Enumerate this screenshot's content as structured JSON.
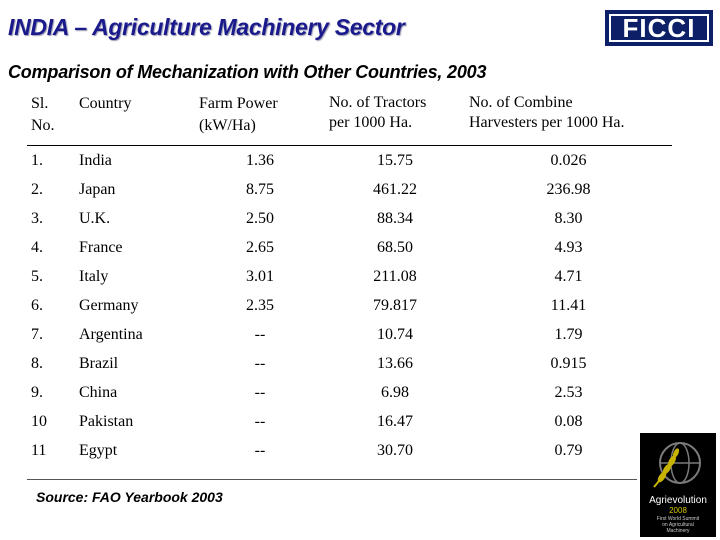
{
  "header": {
    "title": "INDIA – Agriculture Machinery Sector",
    "subtitle": "Comparison of Mechanization with Other Countries, 2003",
    "logo_text": "FICCI"
  },
  "table": {
    "headers": {
      "sl_line1": "Sl.",
      "sl_line2": "No.",
      "country": "Country",
      "farm_power_line1": "Farm Power",
      "farm_power_line2": "(kW/Ha)",
      "tractors_line1": "No. of Tractors",
      "tractors_line2": "per 1000 Ha.",
      "combine_line1": "No. of Combine",
      "combine_line2": "Harvesters per 1000 Ha."
    },
    "rows": [
      {
        "sl": "1.",
        "country": "India",
        "farm_power": "1.36",
        "tractors": "15.75",
        "combine": "0.026"
      },
      {
        "sl": "2.",
        "country": "Japan",
        "farm_power": "8.75",
        "tractors": "461.22",
        "combine": "236.98"
      },
      {
        "sl": "3.",
        "country": "U.K.",
        "farm_power": "2.50",
        "tractors": "88.34",
        "combine": "8.30"
      },
      {
        "sl": "4.",
        "country": "France",
        "farm_power": "2.65",
        "tractors": "68.50",
        "combine": "4.93"
      },
      {
        "sl": "5.",
        "country": "Italy",
        "farm_power": "3.01",
        "tractors": "211.08",
        "combine": "4.71"
      },
      {
        "sl": "6.",
        "country": "Germany",
        "farm_power": "2.35",
        "tractors": "79.817",
        "combine": "11.41"
      },
      {
        "sl": "7.",
        "country": "Argentina",
        "farm_power": "--",
        "tractors": "10.74",
        "combine": "1.79"
      },
      {
        "sl": "8.",
        "country": "Brazil",
        "farm_power": "--",
        "tractors": "13.66",
        "combine": "0.915"
      },
      {
        "sl": "9.",
        "country": "China",
        "farm_power": "--",
        "tractors": "6.98",
        "combine": "2.53"
      },
      {
        "sl": "10",
        "country": "Pakistan",
        "farm_power": "--",
        "tractors": "16.47",
        "combine": "0.08"
      },
      {
        "sl": "11",
        "country": "Egypt",
        "farm_power": "--",
        "tractors": "30.70",
        "combine": "0.79"
      }
    ]
  },
  "source": "Source: FAO Yearbook 2003",
  "badge": {
    "name": "Agrievolution",
    "year": "2008",
    "tagline_1": "First World Summit",
    "tagline_2": "on Agricultural",
    "tagline_3": "Machinery",
    "icon": "wheat-globe-icon"
  }
}
